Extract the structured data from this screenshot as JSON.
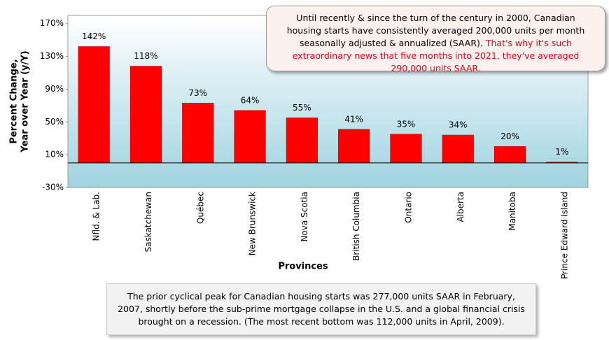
{
  "chart_data": {
    "type": "bar",
    "xlabel": "Provinces",
    "ylabel": [
      "Percent Change,",
      "Year over Year (y/Y)"
    ],
    "categories": [
      "Nfld. & Lab.",
      "Saskatchewan",
      "Québec",
      "New Brunswick",
      "Nova Scotia",
      "British Columbia",
      "Ontario",
      "Alberta",
      "Manitoba",
      "Prince Edward Island"
    ],
    "values": [
      142,
      118,
      73,
      64,
      55,
      41,
      35,
      34,
      20,
      1
    ],
    "value_labels": [
      "142%",
      "118%",
      "73%",
      "64%",
      "55%",
      "41%",
      "35%",
      "34%",
      "20%",
      "1%"
    ],
    "color": "#ff0000",
    "ylim": [
      -30,
      180
    ],
    "yticks": [
      {
        "value": -30,
        "label": "-30%"
      },
      {
        "value": 10,
        "label": "10%"
      },
      {
        "value": 50,
        "label": "50%"
      },
      {
        "value": 90,
        "label": "90%"
      },
      {
        "value": 130,
        "label": "130%"
      },
      {
        "value": 170,
        "label": "170%"
      }
    ]
  },
  "annotation": {
    "black": "Until recently & since the turn of the century in 2000, Canadian housing starts have consistently averaged 200,000 units per month seasonally adjusted & annualized (SAAR).",
    "red": "That's why it's such extraordinary news that five months into 2021, they've averaged 290,000 units SAAR."
  },
  "footnote": "The prior cyclical peak for Canadian housing starts was 277,000 units SAAR in February, 2007, shortly before the sub-prime mortgage collapse in the U.S. and a global financial crisis brought on a recession. (The most recent bottom was 112,000 units in April, 2009)."
}
